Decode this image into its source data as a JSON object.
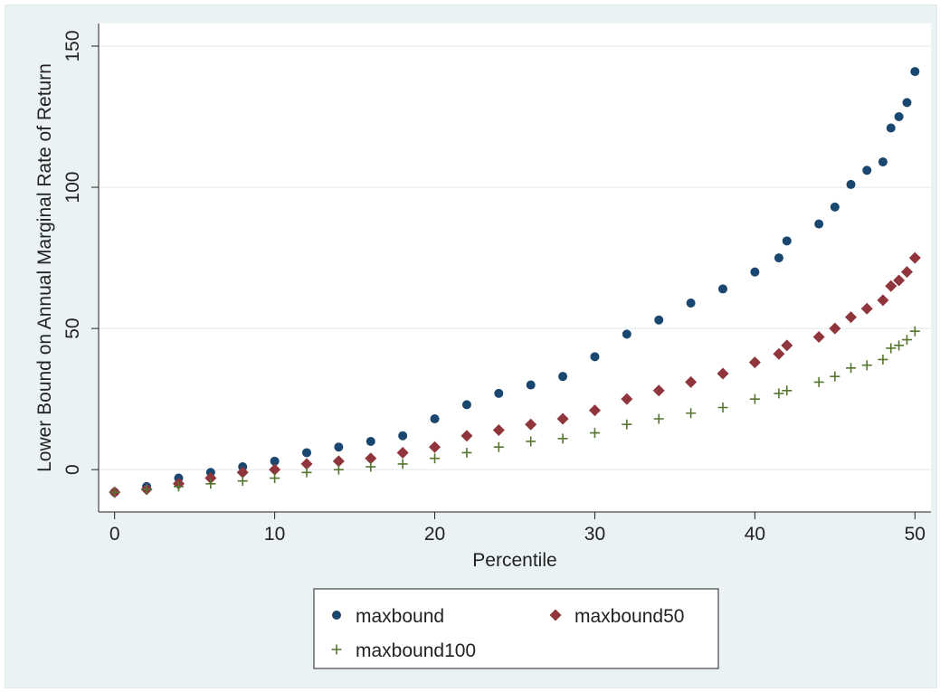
{
  "chart_data": {
    "type": "scatter",
    "title": "",
    "xlabel": "Percentile",
    "ylabel": "Lower Bound on Annual Marginal Rate of Return",
    "xlim": [
      -1,
      51
    ],
    "ylim": [
      -15,
      158
    ],
    "xticks": [
      0,
      10,
      20,
      30,
      40,
      50
    ],
    "yticks": [
      0,
      50,
      100,
      150
    ],
    "grid": true,
    "legend_position": "bottom",
    "colors": {
      "plot_bg": "#ffffff",
      "outer_bg": "#eaf2f3",
      "grid": "#e6ecee"
    },
    "series": [
      {
        "name": "maxbound",
        "marker": "circle",
        "color": "#1a476f",
        "x": [
          0,
          2,
          4,
          6,
          8,
          10,
          12,
          14,
          16,
          18,
          20,
          22,
          24,
          26,
          28,
          30,
          32,
          34,
          36,
          38,
          40,
          41.5,
          42,
          44,
          45,
          46,
          47,
          48,
          48.5,
          49,
          49.5,
          50
        ],
        "y": [
          -8,
          -6,
          -3,
          -1,
          1,
          3,
          6,
          8,
          10,
          12,
          18,
          23,
          27,
          30,
          33,
          40,
          48,
          53,
          59,
          64,
          70,
          75,
          81,
          87,
          93,
          101,
          106,
          109,
          121,
          125,
          130,
          141
        ]
      },
      {
        "name": "maxbound50",
        "marker": "diamond",
        "color": "#90353b",
        "x": [
          0,
          2,
          4,
          6,
          8,
          10,
          12,
          14,
          16,
          18,
          20,
          22,
          24,
          26,
          28,
          30,
          32,
          34,
          36,
          38,
          40,
          41.5,
          42,
          44,
          45,
          46,
          47,
          48,
          48.5,
          49,
          49.5,
          50
        ],
        "y": [
          -8,
          -7,
          -5,
          -3,
          -1,
          0,
          2,
          3,
          4,
          6,
          8,
          12,
          14,
          16,
          18,
          21,
          25,
          28,
          31,
          34,
          38,
          41,
          44,
          47,
          50,
          54,
          57,
          60,
          65,
          67,
          70,
          75
        ]
      },
      {
        "name": "maxbound100",
        "marker": "plus",
        "color": "#55752f",
        "x": [
          0,
          2,
          4,
          6,
          8,
          10,
          12,
          14,
          16,
          18,
          20,
          22,
          24,
          26,
          28,
          30,
          32,
          34,
          36,
          38,
          40,
          41.5,
          42,
          44,
          45,
          46,
          47,
          48,
          48.5,
          49,
          49.5,
          50
        ],
        "y": [
          -8,
          -7,
          -6,
          -5,
          -4,
          -3,
          -1,
          0,
          1,
          2,
          4,
          6,
          8,
          10,
          11,
          13,
          16,
          18,
          20,
          22,
          25,
          27,
          28,
          31,
          33,
          36,
          37,
          39,
          43,
          44,
          46,
          49
        ]
      }
    ]
  }
}
